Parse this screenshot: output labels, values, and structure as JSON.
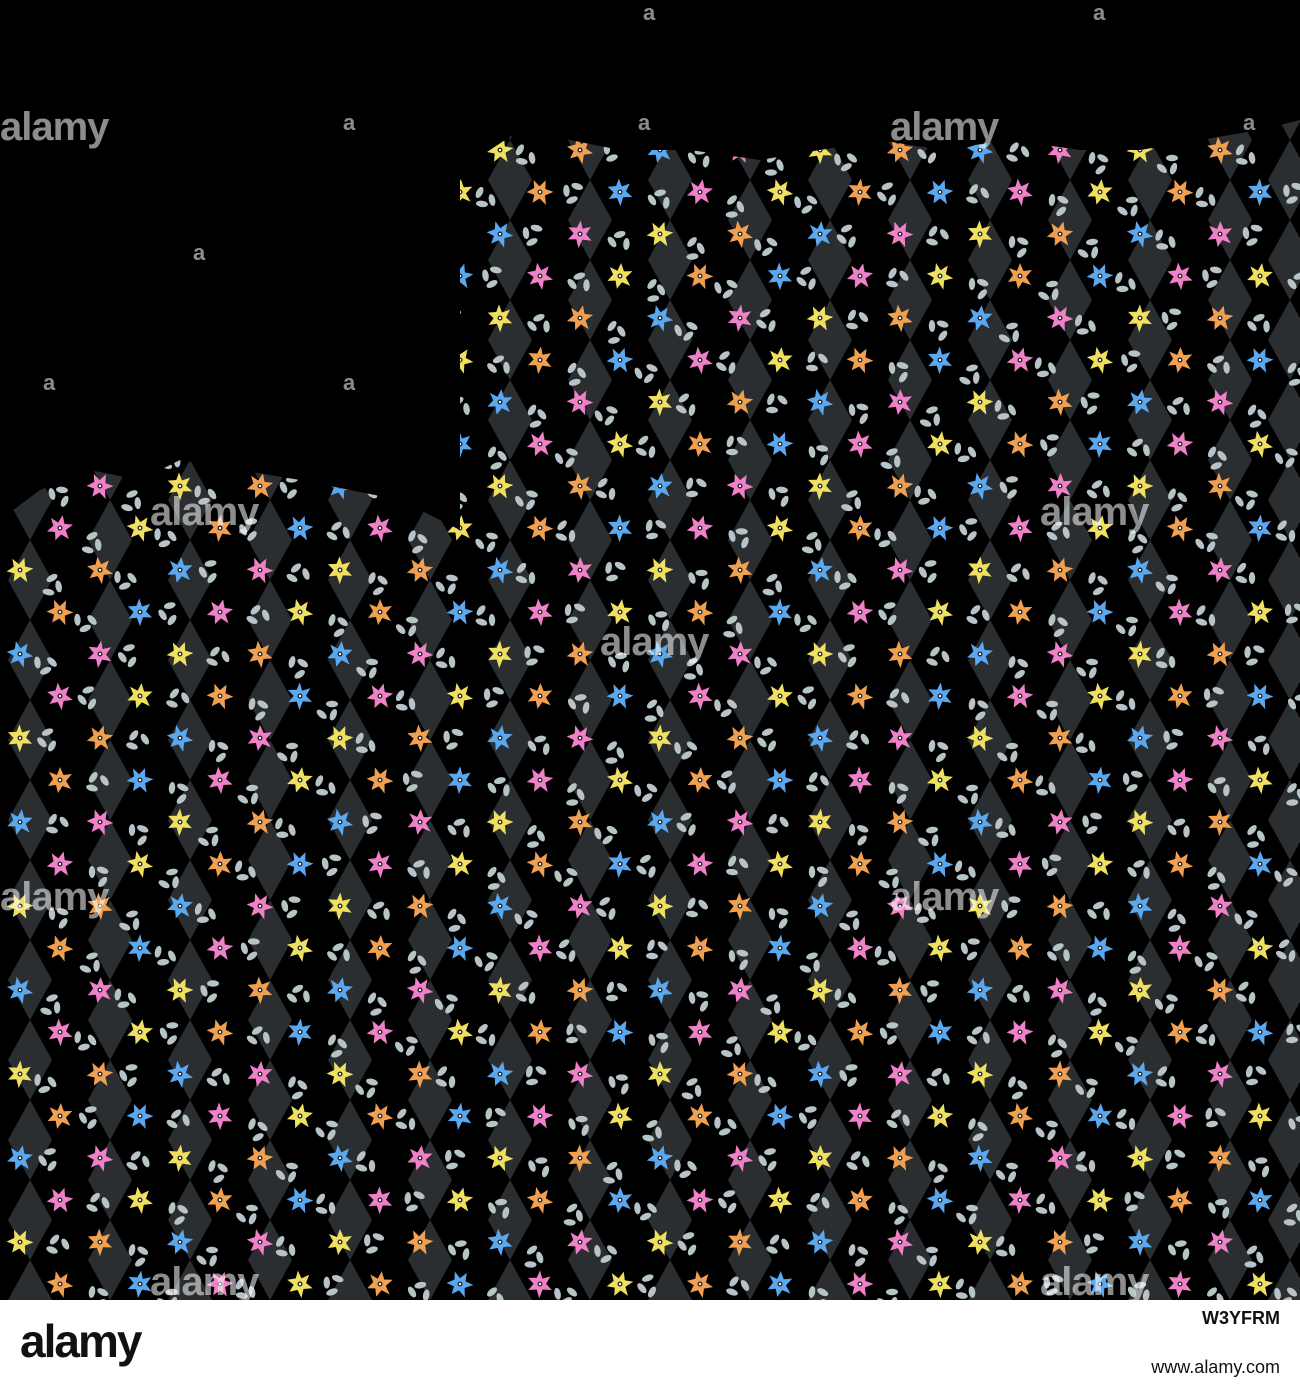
{
  "watermark": {
    "text": "alamy",
    "small": "a"
  },
  "footer": {
    "logo": "alamy",
    "image_id": "W3YFRM",
    "url": "www.alamy.com"
  },
  "colors": {
    "background": "#000000",
    "diamond": "#3a3d40",
    "leaf": "#b6c4c8",
    "flower_blue": "#5aa8f0",
    "flower_pink": "#f080c8",
    "flower_yellow": "#f0e060",
    "flower_orange": "#f0a050"
  },
  "icons": [
    "flower-icon",
    "leaf-icon",
    "diamond-shape"
  ]
}
